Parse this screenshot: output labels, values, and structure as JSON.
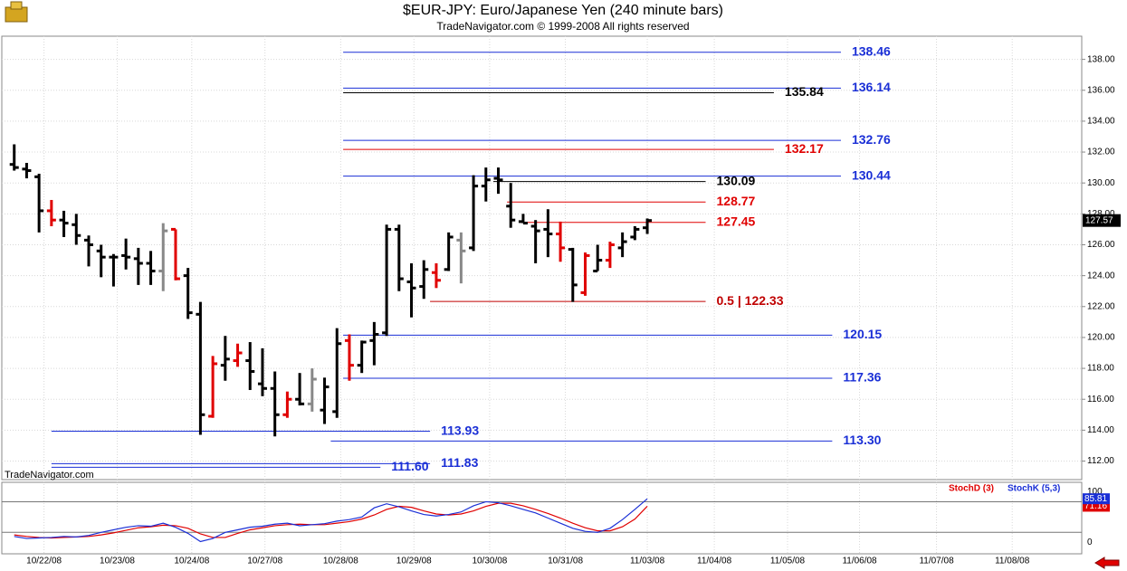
{
  "chart_data": [
    {
      "type": "ohlc",
      "title": "$EUR-JPY:  Euro/Japanese Yen  (240 minute bars)",
      "subtitle": "TradeNavigator.com © 1999-2008 All rights reserved",
      "annotation": "TradeNavigator.com",
      "open": [
        131.2,
        130.9,
        130.4,
        128.2,
        127.6,
        127.3,
        126.3,
        125.6,
        125.2,
        125.3,
        125.1,
        124.8,
        124.3,
        127.0,
        124.0,
        121.5,
        114.9,
        118.2,
        118.5,
        118.5,
        117.0,
        116.7,
        115.0,
        116.0,
        115.7,
        115.3,
        115.2,
        119.8,
        118.2,
        119.8,
        120.3,
        127.0,
        123.6,
        123.3,
        124.2,
        124.4,
        126.3,
        125.8,
        129.8,
        130.3,
        128.5,
        127.5,
        127.2,
        127.0,
        126.7,
        125.7,
        122.9,
        124.3,
        125.0,
        125.8,
        126.5,
        127.1
      ],
      "high": [
        132.5,
        131.3,
        130.6,
        128.9,
        128.2,
        128.0,
        126.6,
        126.0,
        125.4,
        126.4,
        125.8,
        125.6,
        127.4,
        127.0,
        124.5,
        122.3,
        118.8,
        120.1,
        119.6,
        119.7,
        119.3,
        117.8,
        116.5,
        117.7,
        118.0,
        117.4,
        120.6,
        120.2,
        119.8,
        121.0,
        127.3,
        127.3,
        124.8,
        125.0,
        124.8,
        126.8,
        126.8,
        130.5,
        131.0,
        131.0,
        130.0,
        128.0,
        127.6,
        128.3,
        127.5,
        125.8,
        125.5,
        126.0,
        126.2,
        126.8,
        127.2,
        127.7
      ],
      "low": [
        130.8,
        130.3,
        126.8,
        127.2,
        126.5,
        126.0,
        124.6,
        123.9,
        123.3,
        124.4,
        123.4,
        123.4,
        123.0,
        123.7,
        121.2,
        113.7,
        114.8,
        117.2,
        118.1,
        116.6,
        116.2,
        113.6,
        114.8,
        115.6,
        115.2,
        114.4,
        114.8,
        117.2,
        117.7,
        118.2,
        120.1,
        123.0,
        121.3,
        122.5,
        123.2,
        124.3,
        123.5,
        125.6,
        128.8,
        129.3,
        127.1,
        127.4,
        124.8,
        125.2,
        124.9,
        122.3,
        122.7,
        124.3,
        124.5,
        125.2,
        126.3,
        126.7
      ],
      "close": [
        131.0,
        130.8,
        128.2,
        127.6,
        127.4,
        126.6,
        126.0,
        125.2,
        125.2,
        125.2,
        124.8,
        124.3,
        126.9,
        123.8,
        121.6,
        115.0,
        118.3,
        118.6,
        119.0,
        117.8,
        116.7,
        115.0,
        116.0,
        115.7,
        117.3,
        116.8,
        119.6,
        118.2,
        119.7,
        120.2,
        127.0,
        123.8,
        123.2,
        124.4,
        123.7,
        126.5,
        125.6,
        129.8,
        130.2,
        130.2,
        127.6,
        127.4,
        126.9,
        126.7,
        125.8,
        123.4,
        125.3,
        125.0,
        126.0,
        126.2,
        127.0,
        127.57
      ],
      "bar_colors": [
        "#000000",
        "#000000",
        "#000000",
        "#e00000",
        "#000000",
        "#000000",
        "#000000",
        "#000000",
        "#000000",
        "#000000",
        "#000000",
        "#000000",
        "#888888",
        "#e00000",
        "#000000",
        "#000000",
        "#e00000",
        "#000000",
        "#e00000",
        "#000000",
        "#000000",
        "#000000",
        "#e00000",
        "#000000",
        "#888888",
        "#000000",
        "#000000",
        "#e00000",
        "#000000",
        "#000000",
        "#000000",
        "#000000",
        "#000000",
        "#000000",
        "#e00000",
        "#000000",
        "#888888",
        "#000000",
        "#000000",
        "#000000",
        "#000000",
        "#000000",
        "#000000",
        "#000000",
        "#e00000",
        "#000000",
        "#e00000",
        "#000000",
        "#e00000",
        "#000000",
        "#000000",
        "#000000"
      ],
      "xlim": [
        -1,
        86
      ],
      "xticks": [
        {
          "value": 2.4,
          "label": "10/22/08"
        },
        {
          "value": 8.3,
          "label": "10/23/08"
        },
        {
          "value": 14.3,
          "label": "10/24/08"
        },
        {
          "value": 20.2,
          "label": "10/27/08"
        },
        {
          "value": 26.3,
          "label": "10/28/08"
        },
        {
          "value": 32.2,
          "label": "10/29/08"
        },
        {
          "value": 38.3,
          "label": "10/30/08"
        },
        {
          "value": 44.4,
          "label": "10/31/08"
        },
        {
          "value": 51,
          "label": "11/03/08"
        },
        {
          "value": 56.4,
          "label": "11/04/08"
        },
        {
          "value": 62.3,
          "label": "11/05/08"
        },
        {
          "value": 68.1,
          "label": "11/06/08"
        },
        {
          "value": 74.3,
          "label": "11/07/08"
        },
        {
          "value": 80.4,
          "label": "11/08/08"
        }
      ],
      "ylim": [
        110.8,
        139.5
      ],
      "yticks": [
        {
          "value": 112,
          "label": "112.00"
        },
        {
          "value": 114,
          "label": "114.00"
        },
        {
          "value": 116,
          "label": "116.00"
        },
        {
          "value": 118,
          "label": "118.00"
        },
        {
          "value": 120,
          "label": "120.00"
        },
        {
          "value": 122,
          "label": "122.00"
        },
        {
          "value": 124,
          "label": "124.00"
        },
        {
          "value": 126,
          "label": "126.00"
        },
        {
          "value": 128,
          "label": "128.00"
        },
        {
          "value": 130,
          "label": "130.00"
        },
        {
          "value": 132,
          "label": "132.00"
        },
        {
          "value": 134,
          "label": "134.00"
        },
        {
          "value": 136,
          "label": "136.00"
        },
        {
          "value": 138,
          "label": "138.00"
        }
      ],
      "grid": true,
      "levels": [
        {
          "value": 138.46,
          "color": "#1a2fd6",
          "x_range": [
            26.5,
            66.6
          ]
        },
        {
          "value": 136.14,
          "color": "#1a2fd6",
          "x_range": [
            26.5,
            66.6
          ]
        },
        {
          "value": 135.84,
          "color": "#000000",
          "x_range": [
            26.5,
            61.2
          ]
        },
        {
          "value": 132.76,
          "color": "#1a2fd6",
          "x_range": [
            26.5,
            66.6
          ]
        },
        {
          "value": 132.17,
          "color": "#e00000",
          "x_range": [
            26.5,
            61.2
          ]
        },
        {
          "value": 130.44,
          "color": "#1a2fd6",
          "x_range": [
            26.5,
            66.6
          ]
        },
        {
          "value": 130.09,
          "color": "#000000",
          "x_range": [
            38.6,
            55.7
          ]
        },
        {
          "value": 128.77,
          "color": "#e00000",
          "x_range": [
            39.7,
            55.7
          ]
        },
        {
          "value": 127.45,
          "color": "#e00000",
          "x_range": [
            40.8,
            55.7
          ]
        },
        {
          "value": 122.33,
          "label": "0.5 | 122.33",
          "color": "#c00000",
          "x_range": [
            33.5,
            55.7
          ]
        },
        {
          "value": 120.15,
          "color": "#1a2fd6",
          "x_range": [
            26.5,
            65.9
          ]
        },
        {
          "value": 117.36,
          "color": "#1a2fd6",
          "x_range": [
            26.5,
            65.9
          ]
        },
        {
          "value": 113.93,
          "color": "#1a2fd6",
          "x_range": [
            3,
            33.5
          ]
        },
        {
          "value": 113.3,
          "label": "113.30",
          "color": "#1a2fd6",
          "x_range": [
            25.5,
            65.9
          ]
        },
        {
          "value": 111.83,
          "color": "#1a2fd6",
          "x_range": [
            3,
            33.5
          ]
        },
        {
          "value": 111.6,
          "label": "111.60",
          "color": "#1a2fd6",
          "x_range": [
            3,
            29.5
          ]
        }
      ]
    },
    {
      "type": "line",
      "ylim": [
        -22,
        118
      ],
      "yticks": [
        0,
        100
      ],
      "hlines": [
        80,
        20
      ],
      "series": [
        {
          "name": "StochD (3)",
          "color": "#e00000",
          "values": [
            15,
            12,
            10,
            9,
            10,
            11,
            12,
            15,
            19,
            24,
            29,
            31,
            34,
            33,
            28,
            17,
            10,
            10,
            18,
            25,
            29,
            33,
            35,
            36,
            35,
            35,
            38,
            41,
            46,
            54,
            65,
            71,
            69,
            62,
            56,
            54,
            56,
            62,
            71,
            77,
            77,
            72,
            65,
            57,
            48,
            38,
            29,
            23,
            23,
            31,
            46,
            71.16
          ]
        },
        {
          "name": "StochK (5,3)",
          "color": "#1a2fd6",
          "values": [
            12,
            8,
            9,
            10,
            12,
            11,
            14,
            20,
            25,
            30,
            33,
            32,
            38,
            30,
            18,
            2,
            8,
            20,
            25,
            30,
            32,
            36,
            38,
            33,
            35,
            37,
            42,
            45,
            50,
            68,
            76,
            70,
            62,
            55,
            52,
            55,
            60,
            72,
            80,
            78,
            72,
            65,
            58,
            48,
            38,
            28,
            22,
            20,
            28,
            45,
            65,
            85.81
          ]
        }
      ]
    }
  ]
}
